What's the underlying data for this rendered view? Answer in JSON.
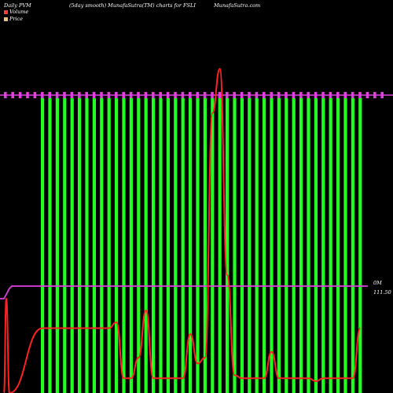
{
  "header": {
    "left": "Daily PVM",
    "center": "(5day smooth) MunafaSutra(TM) charts for FSLI",
    "right": "MunafaSutra.com"
  },
  "legend": [
    {
      "name": "Volume",
      "color": "#ff3a3a"
    },
    {
      "name": "Price",
      "color": "#f0c080"
    }
  ],
  "axis": {
    "volume_label": "0M",
    "price_label": "111.50"
  },
  "colors": {
    "background": "#000000",
    "volume_bar": "#22ff22",
    "volume_line": "#ff2222",
    "price_line": "#e040e0"
  },
  "chart_data": {
    "type": "bar",
    "title": "(5day smooth) MunafaSutra(TM) charts for FSLI",
    "bar_count": 44,
    "volume_bar_values": [
      1,
      1,
      1,
      1,
      1,
      1,
      1,
      1,
      1,
      1,
      1,
      1,
      1,
      1,
      1,
      1,
      1,
      1,
      1,
      1,
      1,
      1,
      1,
      1,
      1,
      1,
      1,
      1,
      1,
      1,
      1,
      1,
      1,
      1,
      1,
      1,
      1,
      1,
      1,
      1,
      1,
      1,
      1,
      1
    ],
    "volume_line": [
      0.22,
      0.22,
      0.22,
      0.22,
      0.22,
      0.22,
      0.22,
      0.22,
      0.22,
      0.22,
      0.24,
      0.05,
      0.05,
      0.12,
      0.28,
      0.05,
      0.05,
      0.05,
      0.05,
      0.05,
      0.2,
      0.1,
      0.12,
      0.95,
      1.1,
      0.4,
      0.06,
      0.05,
      0.05,
      0.05,
      0.05,
      0.14,
      0.05,
      0.05,
      0.05,
      0.05,
      0.05,
      0.04,
      0.05,
      0.05,
      0.05,
      0.05,
      0.05,
      0.22
    ],
    "price_level_upper": 111.5,
    "price_level_lower": 111.5,
    "series": [
      {
        "name": "Volume"
      },
      {
        "name": "Price"
      }
    ]
  }
}
